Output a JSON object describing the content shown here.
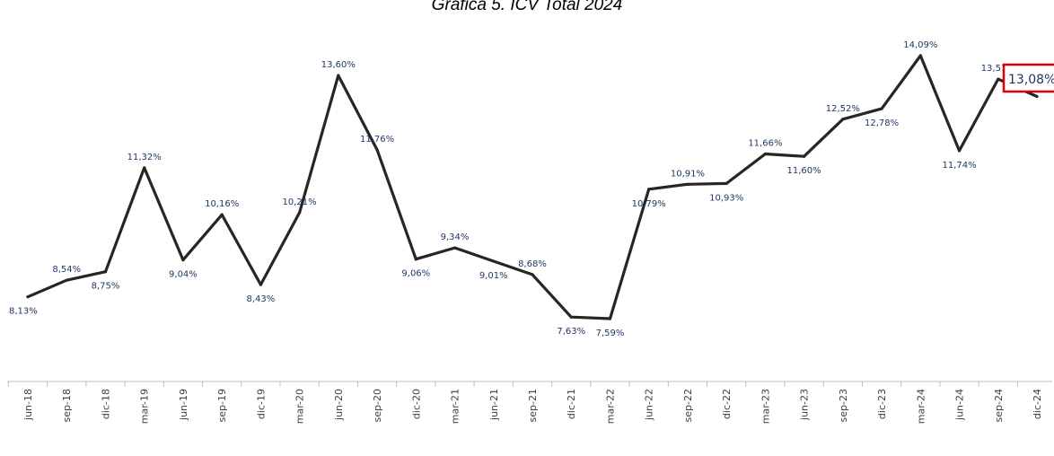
{
  "chart_data": {
    "type": "line",
    "title": "Gráfica 5. ICV Total 2024",
    "xlabel": "",
    "ylabel": "",
    "ylim": [
      6.5,
      14.6
    ],
    "grid": false,
    "legend": "none",
    "categories": [
      "jun-18",
      "sep-18",
      "dic-18",
      "mar-19",
      "jun-19",
      "sep-19",
      "dic-19",
      "mar-20",
      "jun-20",
      "sep-20",
      "dic-20",
      "mar-21",
      "jun-21",
      "sep-21",
      "dic-21",
      "mar-22",
      "jun-22",
      "sep-22",
      "dic-22",
      "mar-23",
      "jun-23",
      "sep-23",
      "dic-23",
      "mar-24",
      "jun-24",
      "sep-24",
      "dic-24"
    ],
    "series": [
      {
        "values": [
          8.13,
          8.54,
          8.75,
          11.32,
          9.04,
          10.16,
          8.43,
          10.21,
          13.6,
          11.76,
          9.06,
          9.34,
          9.01,
          8.68,
          7.63,
          7.59,
          10.79,
          10.91,
          10.93,
          11.66,
          11.6,
          12.52,
          12.78,
          14.09,
          11.74,
          13.51,
          13.08
        ],
        "labels": [
          "8,13%",
          "8,54%",
          "8,75%",
          "11,32%",
          "9,04%",
          "10,16%",
          "8,43%",
          "10,21%",
          "13,60%",
          "11,76%",
          "9,06%",
          "9,34%",
          "9,01%",
          "8,68%",
          "7,63%",
          "7,59%",
          "10,79%",
          "10,91%",
          "10,93%",
          "11,66%",
          "11,60%",
          "12,52%",
          "12,78%",
          "14,09%",
          "11,74%",
          "13,51%",
          "13,08%"
        ],
        "color": "#262626"
      }
    ],
    "highlight": {
      "index": 26,
      "label": "13,08%",
      "border_color": "#e00000"
    },
    "label_color": "#1f3864",
    "axis_color": "#bfbfbf"
  }
}
